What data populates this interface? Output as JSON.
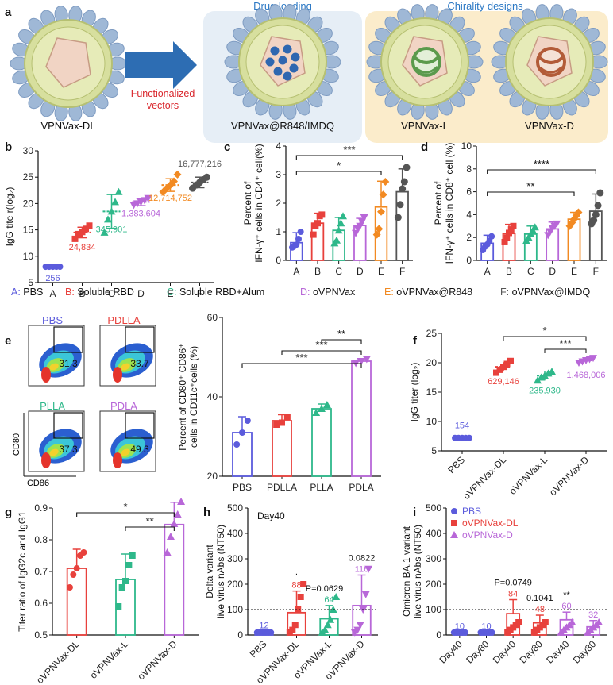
{
  "colors": {
    "A": "#5b5bdc",
    "B": "#e8413c",
    "C": "#2eb88a",
    "D": "#b867d8",
    "E": "#f28a22",
    "F": "#555555",
    "pbs": "#5b5bdc",
    "dl": "#e8413c",
    "l": "#2eb88a",
    "d": "#b867d8",
    "box_blue": "#e6eef6",
    "box_yellow": "#fbeccb",
    "arrow": "#2d6db3",
    "header": "#2b78c4"
  },
  "panel_a": {
    "label": "a",
    "drug_loading": "Drug loading",
    "chirality": "Chirality designs",
    "functionalized": "Functionalized",
    "vectors": "vectors",
    "vpnvax_dl": "VPNVax-DL",
    "vpnvax_r848": "VPNVax@R848/IMDQ",
    "vpnvax_l": "VPNVax-L",
    "vpnvax_d": "VPNVax-D"
  },
  "legend": [
    {
      "key": "A:",
      "text": " PBS",
      "color": "A"
    },
    {
      "key": "B:",
      "text": " Soluble RBD",
      "color": "B"
    },
    {
      "key": "C:",
      "text": " Soluble RBD+Alum",
      "color": "C"
    },
    {
      "key": "D:",
      "text": " oVPNVax",
      "color": "D"
    },
    {
      "key": "E:",
      "text": " oVPNVax@R848",
      "color": "E"
    },
    {
      "key": "F:",
      "text": " oVPNVax@IMDQ",
      "color": "F"
    }
  ],
  "flow": {
    "label": "e",
    "gates": [
      {
        "name": "PBS",
        "value": "31.3",
        "color": "pbs"
      },
      {
        "name": "PDLLA",
        "value": "33.7",
        "color": "B"
      },
      {
        "name": "PLLA",
        "value": "37.3",
        "color": "l"
      },
      {
        "name": "PDLA",
        "value": "49.3",
        "color": "d"
      }
    ],
    "xaxis": "CD86",
    "yaxis": "CD80"
  },
  "chart_data": [
    {
      "panel": "b",
      "type": "scatter",
      "ylabel": "IgG tite r(log₂)",
      "ylim": [
        5,
        30
      ],
      "yticks": [
        5,
        10,
        15,
        20,
        25,
        30
      ],
      "categories": [
        "A",
        "B",
        "C",
        "D",
        "E",
        "F"
      ],
      "means": [
        8,
        14.5,
        18.5,
        20.3,
        23.5,
        24
      ],
      "sd": [
        0.2,
        1.0,
        3.2,
        0.7,
        1.2,
        1.0
      ],
      "points": [
        [
          8,
          8,
          8,
          8,
          8
        ],
        [
          13.3,
          14.2,
          14.6,
          15.2,
          15.8
        ],
        [
          14.5,
          17.0,
          18.5,
          20.3,
          22.2
        ],
        [
          19.7,
          20.0,
          20.3,
          20.6,
          21.0
        ],
        [
          22.2,
          22.9,
          23.5,
          24.2,
          25.5
        ],
        [
          22.9,
          23.5,
          24.0,
          24.5,
          25.0
        ]
      ],
      "labels": [
        "256",
        "24,834",
        "345,901",
        "1,383,604",
        "12,714,752",
        "16,777,216"
      ]
    },
    {
      "panel": "c",
      "type": "bar",
      "ylabel": "Percent of",
      "ylabel2": "IFN-γ⁺ cells in CD4⁺ cell(%)",
      "ylim": [
        0,
        4
      ],
      "yticks": [
        0,
        1,
        2,
        3,
        4
      ],
      "categories": [
        "A",
        "B",
        "C",
        "D",
        "E",
        "F"
      ],
      "values": [
        0.62,
        1.3,
        1.05,
        1.22,
        1.87,
        2.4
      ],
      "sd": [
        0.35,
        0.35,
        0.45,
        0.25,
        0.9,
        0.8
      ],
      "points": [
        [
          0.45,
          0.5,
          0.55,
          0.75,
          1.0
        ],
        [
          0.9,
          1.2,
          1.3,
          1.55,
          1.6
        ],
        [
          0.6,
          0.7,
          1.05,
          1.3,
          1.55
        ],
        [
          0.95,
          1.1,
          1.2,
          1.35,
          1.5
        ],
        [
          0.9,
          1.1,
          1.7,
          2.3,
          2.75
        ],
        [
          1.5,
          1.95,
          2.5,
          2.75,
          3.25
        ]
      ],
      "sig": [
        {
          "from": 0,
          "to": 4,
          "text": "*"
        },
        {
          "from": 0,
          "to": 5,
          "text": "***"
        }
      ]
    },
    {
      "panel": "d",
      "type": "bar",
      "ylabel": "Percent of",
      "ylabel2": "IFN-γ⁺ cells in CD8⁺ cell (%)",
      "ylim": [
        0,
        10
      ],
      "yticks": [
        0,
        2,
        4,
        6,
        8,
        10
      ],
      "categories": [
        "A",
        "B",
        "C",
        "D",
        "E",
        "F"
      ],
      "values": [
        1.5,
        2.35,
        2.3,
        2.75,
        3.6,
        4.3
      ],
      "sd": [
        0.7,
        0.8,
        0.7,
        0.6,
        0.6,
        1.5
      ],
      "points": [
        [
          0.9,
          1.2,
          1.4,
          1.7,
          2.1
        ],
        [
          1.6,
          2.0,
          2.4,
          2.7,
          3.0
        ],
        [
          1.7,
          2.0,
          2.3,
          2.6,
          2.9
        ],
        [
          2.2,
          2.5,
          2.8,
          3.0,
          3.2
        ],
        [
          3.0,
          3.3,
          3.6,
          3.9,
          4.2
        ],
        [
          3.2,
          3.5,
          4.0,
          4.8,
          5.9
        ]
      ],
      "sig": [
        {
          "from": 0,
          "to": 4,
          "text": "**"
        },
        {
          "from": 0,
          "to": 5,
          "text": "****"
        }
      ]
    },
    {
      "panel": "e",
      "type": "bar",
      "ylabel": "Percent of CD80⁺ CD86⁺",
      "ylabel2": "cells in CD11c⁺cells (%)",
      "ylim": [
        20,
        60
      ],
      "yticks": [
        20,
        40,
        60
      ],
      "categories": [
        "PBS",
        "PDLLA",
        "PLLA",
        "PDLA"
      ],
      "values": [
        31,
        34,
        37,
        49
      ],
      "sd": [
        4,
        1.5,
        1.2,
        0.6
      ],
      "points": [
        [
          28,
          31,
          34
        ],
        [
          33,
          33.5,
          35
        ],
        [
          36,
          37,
          38
        ],
        [
          48.5,
          49,
          49.5
        ]
      ],
      "sig": [
        {
          "from": 2,
          "to": 3,
          "text": "**"
        },
        {
          "from": 1,
          "to": 3,
          "text": "***"
        },
        {
          "from": 0,
          "to": 3,
          "text": "***"
        }
      ]
    },
    {
      "panel": "f",
      "type": "scatter",
      "ylabel": "IgG titer (log₂)",
      "ylim": [
        5,
        25
      ],
      "yticks": [
        5,
        10,
        15,
        20,
        25
      ],
      "categories": [
        "PBS",
        "oVPNVax-DL",
        "oVPNVax-L",
        "oVPNVax-D"
      ],
      "means": [
        7.2,
        19.3,
        17.8,
        20.4
      ],
      "sd": [
        0.2,
        0.8,
        0.8,
        0.4
      ],
      "points": [
        [
          7.2,
          7.2,
          7.2,
          7.2,
          7.2
        ],
        [
          18.3,
          18.8,
          19.3,
          19.8,
          20.3
        ],
        [
          17.0,
          17.5,
          17.8,
          18.2,
          18.5
        ],
        [
          20.0,
          20.2,
          20.4,
          20.6,
          20.8
        ]
      ],
      "labels": [
        "154",
        "629,146",
        "235,930",
        "1,468,006"
      ],
      "sig": [
        {
          "from": 2,
          "to": 3,
          "text": "***"
        },
        {
          "from": 1,
          "to": 3,
          "text": "*"
        }
      ]
    },
    {
      "panel": "g",
      "type": "bar",
      "ylabel": "Titer ratio of IgG2c and IgG1",
      "ylim": [
        0.5,
        0.9
      ],
      "yticks": [
        0.5,
        0.6,
        0.7,
        0.8,
        0.9
      ],
      "categories": [
        "oVPNVax-DL",
        "oVPNVax-L",
        "oVPNVax-D"
      ],
      "values": [
        0.71,
        0.675,
        0.848
      ],
      "sd": [
        0.06,
        0.08,
        0.07
      ],
      "points": [
        [
          0.65,
          0.69,
          0.71,
          0.75,
          0.76
        ],
        [
          0.59,
          0.65,
          0.67,
          0.72,
          0.75
        ],
        [
          0.76,
          0.81,
          0.85,
          0.88,
          0.92
        ]
      ],
      "sig": [
        {
          "from": 1,
          "to": 2,
          "text": "**"
        },
        {
          "from": 0,
          "to": 2,
          "text": "*"
        }
      ]
    },
    {
      "panel": "h",
      "type": "bar",
      "title": "Day40",
      "ylabel": "Delta variant",
      "ylabel2": "live virus nAbs (NT50)",
      "ylim": [
        0,
        500
      ],
      "yticks": [
        0,
        100,
        200,
        300,
        400,
        500
      ],
      "categories": [
        "PBS",
        "oVPNVax-DL",
        "oVPNVax-L",
        "oVPNVax-D"
      ],
      "values": [
        12,
        88,
        64,
        116
      ],
      "sd": [
        2,
        85,
        52,
        120
      ],
      "points": [
        [
          10,
          10,
          10,
          10,
          10,
          10
        ],
        [
          10,
          20,
          40,
          100,
          150,
          200
        ],
        [
          10,
          20,
          40,
          60,
          100,
          150
        ],
        [
          10,
          20,
          40,
          100,
          160,
          260
        ]
      ],
      "labels": [
        "12",
        "88",
        "64",
        "116"
      ],
      "annotations": [
        "",
        "·",
        "P=0.0629",
        "0.0822"
      ],
      "dotted_line": 100
    },
    {
      "panel": "i",
      "type": "bar",
      "ylabel": "Omicron BA.1 variant",
      "ylabel2": "live virus nAbs (NT50)",
      "ylim": [
        0,
        500
      ],
      "yticks": [
        0,
        100,
        200,
        300,
        400,
        500
      ],
      "categories": [
        "Day40",
        "Day80",
        "Day40",
        "Day80",
        "Day40",
        "Day80"
      ],
      "groups": [
        "PBS",
        "PBS",
        "oVPNVax-DL",
        "oVPNVax-DL",
        "oVPNVax-D",
        "oVPNVax-D"
      ],
      "values": [
        10,
        10,
        84,
        48,
        60,
        32
      ],
      "sd": [
        1,
        1,
        55,
        30,
        30,
        25
      ],
      "labels": [
        "10",
        "10",
        "84",
        "48",
        "60",
        "32"
      ],
      "annotations": [
        "",
        "",
        "P=0.0749",
        "0.1041",
        "**",
        ""
      ],
      "legend": [
        "PBS",
        "oVPNVax-DL",
        "oVPNVax-D"
      ],
      "dotted_line": 100
    }
  ]
}
